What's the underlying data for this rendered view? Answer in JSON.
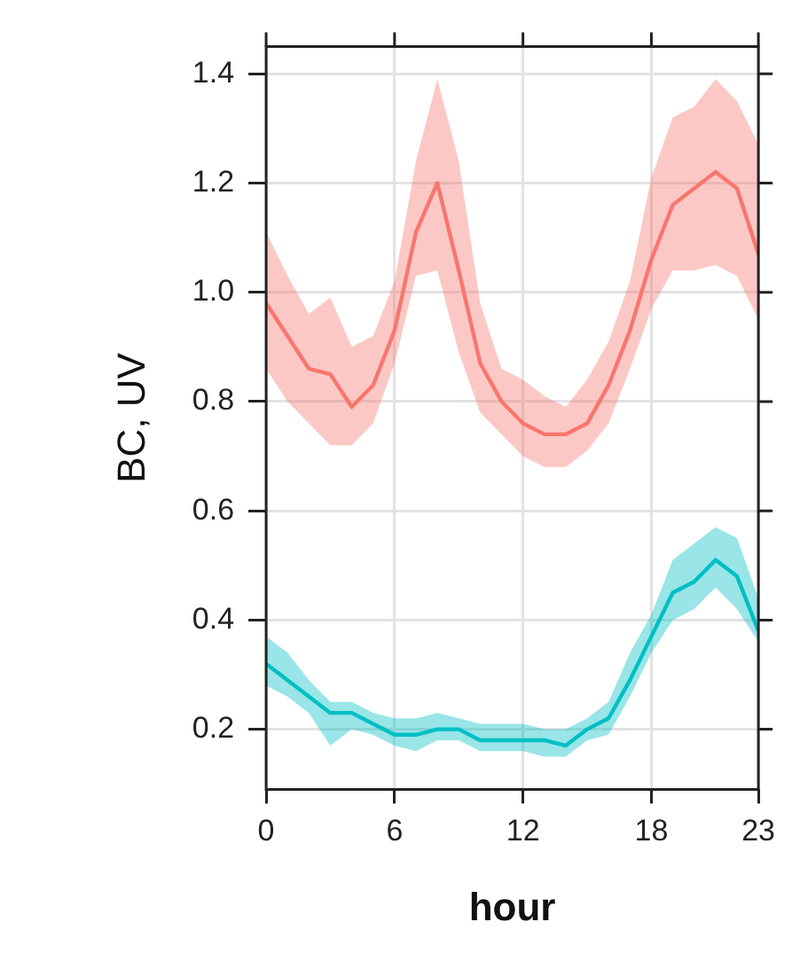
{
  "chart_data": {
    "type": "line",
    "xlabel": "hour",
    "ylabel": "BC, UV",
    "x": [
      0,
      1,
      2,
      3,
      4,
      5,
      6,
      7,
      8,
      9,
      10,
      11,
      12,
      13,
      14,
      15,
      16,
      17,
      18,
      19,
      20,
      21,
      22,
      23
    ],
    "series": [
      {
        "color": "#f8766d",
        "values": [
          0.98,
          0.92,
          0.86,
          0.85,
          0.79,
          0.83,
          0.93,
          1.11,
          1.2,
          1.04,
          0.87,
          0.8,
          0.76,
          0.74,
          0.74,
          0.76,
          0.83,
          0.93,
          1.06,
          1.16,
          1.19,
          1.22,
          1.19,
          1.07
        ],
        "upper": [
          1.11,
          1.03,
          0.96,
          0.99,
          0.9,
          0.92,
          1.02,
          1.24,
          1.39,
          1.24,
          0.98,
          0.86,
          0.84,
          0.81,
          0.79,
          0.84,
          0.91,
          1.02,
          1.21,
          1.32,
          1.34,
          1.39,
          1.35,
          1.27
        ],
        "lower": [
          0.86,
          0.8,
          0.76,
          0.72,
          0.72,
          0.76,
          0.87,
          1.03,
          1.04,
          0.89,
          0.78,
          0.74,
          0.7,
          0.68,
          0.68,
          0.71,
          0.76,
          0.86,
          0.97,
          1.04,
          1.04,
          1.05,
          1.03,
          0.95
        ]
      },
      {
        "color": "#00bfc4",
        "values": [
          0.32,
          0.29,
          0.26,
          0.23,
          0.23,
          0.21,
          0.19,
          0.19,
          0.2,
          0.2,
          0.18,
          0.18,
          0.18,
          0.18,
          0.17,
          0.2,
          0.22,
          0.29,
          0.37,
          0.45,
          0.47,
          0.51,
          0.48,
          0.38
        ],
        "upper": [
          0.37,
          0.34,
          0.29,
          0.25,
          0.25,
          0.23,
          0.22,
          0.22,
          0.23,
          0.22,
          0.21,
          0.21,
          0.21,
          0.2,
          0.2,
          0.22,
          0.25,
          0.34,
          0.41,
          0.51,
          0.54,
          0.57,
          0.55,
          0.44
        ],
        "lower": [
          0.28,
          0.26,
          0.23,
          0.17,
          0.2,
          0.19,
          0.17,
          0.16,
          0.18,
          0.18,
          0.16,
          0.16,
          0.16,
          0.15,
          0.15,
          0.18,
          0.19,
          0.26,
          0.34,
          0.4,
          0.42,
          0.46,
          0.42,
          0.36
        ]
      }
    ],
    "xlim": [
      0,
      23
    ],
    "xticks": [
      0,
      6,
      12,
      18,
      23
    ],
    "ylim": [
      0.09,
      1.45
    ],
    "yticks": [
      0.2,
      0.4,
      0.6,
      0.8,
      {
        "value": 1,
        "label": "1.0"
      },
      1.2,
      1.4
    ],
    "grid": true,
    "legend": false,
    "marker": "none",
    "line_style": "solid"
  }
}
